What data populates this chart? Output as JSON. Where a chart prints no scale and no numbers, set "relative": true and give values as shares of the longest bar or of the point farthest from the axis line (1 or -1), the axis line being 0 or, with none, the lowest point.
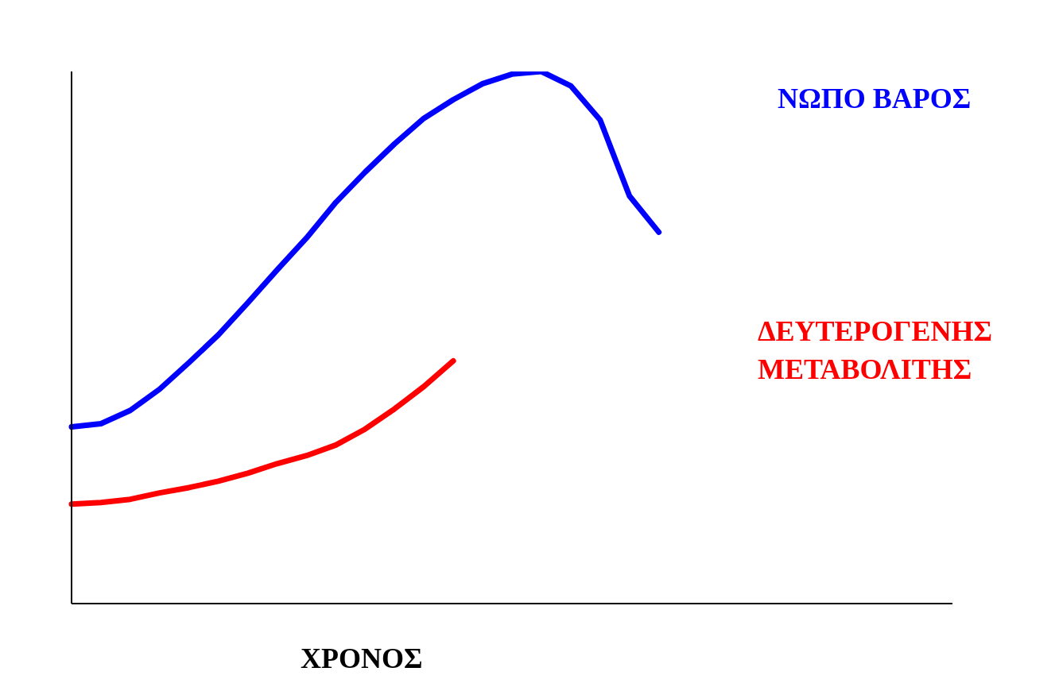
{
  "chart_data": {
    "type": "line",
    "relative": true,
    "xlabel": "ΧΡΟΝΟΣ",
    "legend": false,
    "grid": false,
    "line_style": "solid",
    "categories": [
      null,
      null,
      null,
      null,
      null,
      null,
      null,
      null,
      null,
      null,
      null,
      null,
      null,
      null,
      null,
      null,
      null,
      null,
      null,
      null,
      null,
      null,
      null,
      null,
      null,
      null,
      null,
      null,
      null,
      null,
      null
    ],
    "series": [
      {
        "name": "ΝΩΠΟ ΒΑΡΟΣ",
        "color": "#0000ff",
        "values": [
          0.332,
          0.338,
          0.363,
          0.403,
          0.453,
          0.505,
          0.565,
          0.627,
          0.687,
          0.754,
          0.811,
          0.864,
          0.912,
          0.947,
          0.977,
          0.995,
          1,
          0.973,
          0.909,
          0.766,
          0.698,
          null,
          null,
          null,
          null,
          null,
          null,
          null,
          null,
          null,
          null
        ]
      },
      {
        "name": "ΔΕΥΤΕΡΟΓΕΝΗΣ ΜΕΤΑΒΟΛΙΤΗΣ",
        "color": "#ff0000",
        "values": [
          0.187,
          0.19,
          0.196,
          0.208,
          0.218,
          0.23,
          0.245,
          0.263,
          0.278,
          0.298,
          0.328,
          0.366,
          0.408,
          0.456,
          null,
          null,
          null,
          null,
          null,
          null,
          null,
          null,
          null,
          null,
          null,
          null,
          null,
          null,
          null,
          null,
          null
        ]
      }
    ]
  }
}
